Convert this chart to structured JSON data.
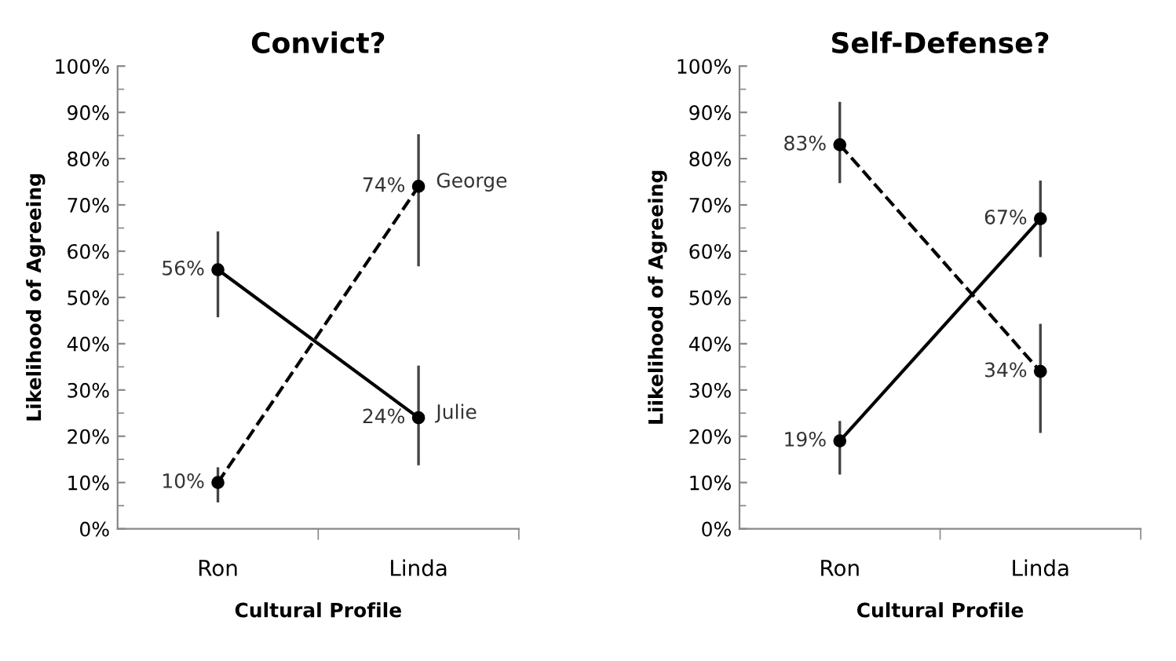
{
  "chart_data": [
    {
      "type": "line",
      "title": "Convict?",
      "xlabel": "Cultural Profile",
      "ylabel": "Likelihood of Agreeing",
      "categories": [
        "Ron",
        "Linda"
      ],
      "ylim": [
        0,
        100
      ],
      "yticks": [
        {
          "value": 0,
          "label": "0%"
        },
        {
          "value": 10,
          "label": "10%"
        },
        {
          "value": 20,
          "label": "20%"
        },
        {
          "value": 30,
          "label": "30%"
        },
        {
          "value": 40,
          "label": "40%"
        },
        {
          "value": 50,
          "label": "50%"
        },
        {
          "value": 60,
          "label": "60%"
        },
        {
          "value": 70,
          "label": "70%"
        },
        {
          "value": 80,
          "label": "80%"
        },
        {
          "value": 90,
          "label": "90%"
        },
        {
          "value": 100,
          "label": "100%"
        }
      ],
      "grid": false,
      "legend": false,
      "marker": "circle",
      "series": [
        {
          "name": "Julie",
          "color": "#000000",
          "line_style": "solid",
          "values": [
            56,
            24
          ],
          "value_labels": [
            "56%",
            "24%"
          ],
          "errors": [
            [
              46,
              64
            ],
            [
              14,
              35
            ]
          ]
        },
        {
          "name": "George",
          "color": "#000000",
          "line_style": "dashed",
          "values": [
            10,
            74
          ],
          "value_labels": [
            "10%",
            "74%"
          ],
          "errors": [
            [
              6,
              13
            ],
            [
              57,
              85
            ]
          ]
        }
      ]
    },
    {
      "type": "line",
      "title": "Self-Defense?",
      "xlabel": "Cultural Profile",
      "ylabel": "Liikelihood of Agreeing",
      "categories": [
        "Ron",
        "Linda"
      ],
      "ylim": [
        0,
        100
      ],
      "yticks": [
        {
          "value": 0,
          "label": "0%"
        },
        {
          "value": 10,
          "label": "10%"
        },
        {
          "value": 20,
          "label": "20%"
        },
        {
          "value": 30,
          "label": "30%"
        },
        {
          "value": 40,
          "label": "40%"
        },
        {
          "value": 50,
          "label": "50%"
        },
        {
          "value": 60,
          "label": "60%"
        },
        {
          "value": 70,
          "label": "70%"
        },
        {
          "value": 80,
          "label": "80%"
        },
        {
          "value": 90,
          "label": "90%"
        },
        {
          "value": 100,
          "label": "100%"
        }
      ],
      "grid": false,
      "legend": false,
      "marker": "circle",
      "series": [
        {
          "color": "#000000",
          "line_style": "solid",
          "values": [
            19,
            67
          ],
          "value_labels": [
            "19%",
            "67%"
          ],
          "errors": [
            [
              12,
              23
            ],
            [
              59,
              75
            ]
          ]
        },
        {
          "color": "#000000",
          "line_style": "dashed",
          "values": [
            83,
            34
          ],
          "value_labels": [
            "83%",
            "34%"
          ],
          "errors": [
            [
              75,
              92
            ],
            [
              21,
              44
            ]
          ]
        }
      ]
    }
  ]
}
